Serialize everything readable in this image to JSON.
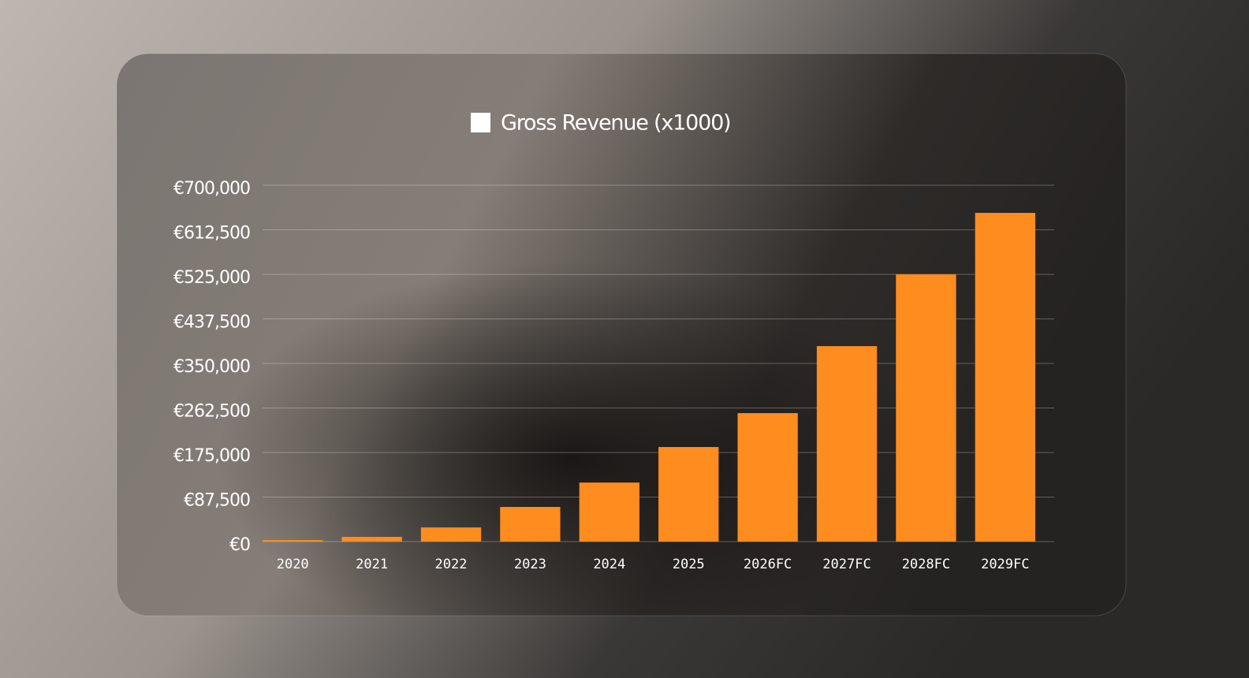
{
  "chart_data": {
    "type": "bar",
    "categories": [
      "2020",
      "2021",
      "2022",
      "2023",
      "2024",
      "2025",
      "2026FC",
      "2027FC",
      "2028FC",
      "2029FC"
    ],
    "series": [
      {
        "name": "Gross Revenue (x1000)",
        "color": "#ff8c1f",
        "values": [
          3000,
          9300,
          27900,
          68100,
          116000,
          185800,
          252400,
          384000,
          525000,
          645800
        ]
      }
    ],
    "legend_swatch_color": "#ffffff",
    "legend_position": "top",
    "ylim": [
      0,
      700000
    ],
    "yticks": [
      {
        "value": 0,
        "label": "€0"
      },
      {
        "value": 87500,
        "label": "€87,500"
      },
      {
        "value": 175000,
        "label": "€175,000"
      },
      {
        "value": 262500,
        "label": "€262,500"
      },
      {
        "value": 350000,
        "label": "€350,000"
      },
      {
        "value": 437500,
        "label": "€437,500"
      },
      {
        "value": 525000,
        "label": "€525,000"
      },
      {
        "value": 612500,
        "label": "€612,500"
      },
      {
        "value": 700000,
        "label": "€700,000"
      }
    ],
    "grid": true
  }
}
